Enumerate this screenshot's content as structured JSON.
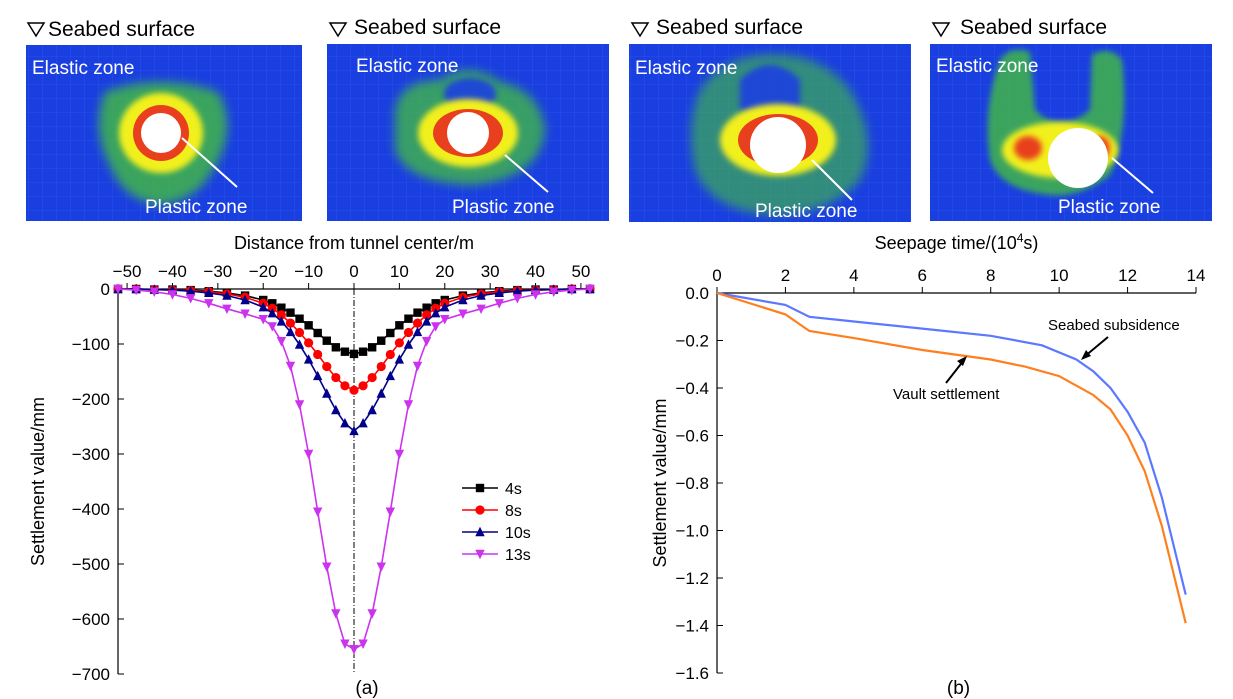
{
  "panels": [
    {
      "header": "Seabed surface",
      "elastic_label": "Elastic zone",
      "plastic_label": "Plastic zone"
    },
    {
      "header": "Seabed surface",
      "elastic_label": "Elastic zone",
      "plastic_label": "Plastic zone"
    },
    {
      "header": "Seabed surface",
      "elastic_label": "Elastic zone",
      "plastic_label": "Plastic zone"
    },
    {
      "header": "Seabed surface",
      "elastic_label": "Elastic zone",
      "plastic_label": "Plastic zone"
    }
  ],
  "colors": {
    "soil_blue": "#1a3fe0",
    "grid_blue": "#3a5cf0",
    "elastic_green": "#3fb64a",
    "plastic_yellow": "#f2f01e",
    "plastic_red": "#e8401e",
    "series_4s": "#000000",
    "series_8s": "#ff0000",
    "series_10s": "#00008b",
    "series_13s": "#cc33ee",
    "seabed_subsidence": "#5b78ff",
    "vault_settlement": "#ff7f1e"
  },
  "chart_data": [
    {
      "type": "line",
      "caption": "(a)",
      "xlabel": "Distance from tunnel center/m",
      "ylabel": "Settlement value/mm",
      "xlim": [
        -52,
        52
      ],
      "ylim": [
        -700,
        0
      ],
      "x_axis_position": "top",
      "xticks": [
        "−50",
        "−40",
        "−30",
        "−20",
        "−10",
        "0",
        "10",
        "20",
        "30",
        "40",
        "50"
      ],
      "yticks": [
        "0",
        "−100",
        "−200",
        "−300",
        "−400",
        "−500",
        "−600",
        "−700"
      ],
      "legend_position": "lower-right",
      "x": [
        -52,
        -48,
        -44,
        -40,
        -36,
        -32,
        -28,
        -24,
        -20,
        -18,
        -16,
        -14,
        -12,
        -10,
        -8,
        -6,
        -4,
        -2,
        0,
        2,
        4,
        6,
        8,
        10,
        12,
        14,
        16,
        18,
        20,
        24,
        28,
        32,
        36,
        40,
        44,
        48,
        52
      ],
      "series": [
        {
          "name": "4s",
          "marker": "square",
          "values": [
            0,
            0,
            -1,
            -1,
            -2,
            -4,
            -7,
            -12,
            -20,
            -26,
            -34,
            -43,
            -54,
            -66,
            -80,
            -94,
            -106,
            -114,
            -118,
            -114,
            -106,
            -94,
            -80,
            -66,
            -54,
            -43,
            -34,
            -26,
            -20,
            -12,
            -7,
            -4,
            -2,
            -1,
            -1,
            0,
            0
          ]
        },
        {
          "name": "8s",
          "marker": "circle",
          "values": [
            0,
            0,
            -1,
            -2,
            -3,
            -5,
            -9,
            -15,
            -26,
            -35,
            -47,
            -62,
            -79,
            -98,
            -119,
            -141,
            -161,
            -176,
            -184,
            -176,
            -161,
            -141,
            -119,
            -98,
            -79,
            -62,
            -47,
            -35,
            -26,
            -15,
            -9,
            -5,
            -3,
            -2,
            -1,
            0,
            0
          ]
        },
        {
          "name": "10s",
          "marker": "triangle-up",
          "values": [
            0,
            0,
            -1,
            -2,
            -4,
            -7,
            -12,
            -20,
            -33,
            -44,
            -59,
            -78,
            -101,
            -128,
            -158,
            -190,
            -220,
            -244,
            -258,
            -244,
            -220,
            -190,
            -158,
            -128,
            -101,
            -78,
            -59,
            -44,
            -33,
            -20,
            -12,
            -7,
            -4,
            -2,
            -1,
            0,
            0
          ]
        },
        {
          "name": "13s",
          "marker": "triangle-down",
          "values": [
            0,
            -2,
            -5,
            -10,
            -17,
            -26,
            -36,
            -45,
            -55,
            -68,
            -95,
            -140,
            -210,
            -300,
            -405,
            -505,
            -590,
            -645,
            -655,
            -645,
            -590,
            -505,
            -405,
            -300,
            -210,
            -140,
            -95,
            -68,
            -55,
            -45,
            -36,
            -26,
            -17,
            -10,
            -5,
            -2,
            0
          ]
        }
      ]
    },
    {
      "type": "line",
      "caption": "(b)",
      "xlabel_prefix": "Seepage time/(10",
      "xlabel_sup": "4",
      "xlabel_suffix": "s)",
      "ylabel": "Settlement value/mm",
      "xlim": [
        0,
        14
      ],
      "ylim": [
        -1.6,
        0
      ],
      "x_axis_position": "top",
      "xticks": [
        "0",
        "2",
        "4",
        "6",
        "8",
        "10",
        "12",
        "14"
      ],
      "yticks": [
        "0.0",
        "−0.2",
        "−0.4",
        "−0.6",
        "−0.8",
        "−1.0",
        "−1.2",
        "−1.4",
        "−1.6"
      ],
      "series": [
        {
          "name": "Seabed subsidence",
          "x": [
            0,
            2,
            2.7,
            4,
            6,
            8,
            9.5,
            10.5,
            11,
            11.5,
            12,
            12.5,
            13,
            13.7
          ],
          "values": [
            0,
            -0.05,
            -0.1,
            -0.12,
            -0.15,
            -0.18,
            -0.22,
            -0.28,
            -0.33,
            -0.4,
            -0.5,
            -0.63,
            -0.86,
            -1.27
          ]
        },
        {
          "name": "Vault settlement",
          "x": [
            0,
            2,
            2.7,
            4,
            6,
            8,
            9,
            10,
            11,
            11.5,
            12,
            12.5,
            13,
            13.7
          ],
          "values": [
            0,
            -0.09,
            -0.16,
            -0.19,
            -0.24,
            -0.28,
            -0.31,
            -0.35,
            -0.43,
            -0.49,
            -0.6,
            -0.75,
            -0.98,
            -1.39
          ]
        }
      ],
      "annotations": [
        "Seabed subsidence",
        "Vault settlement"
      ]
    }
  ]
}
